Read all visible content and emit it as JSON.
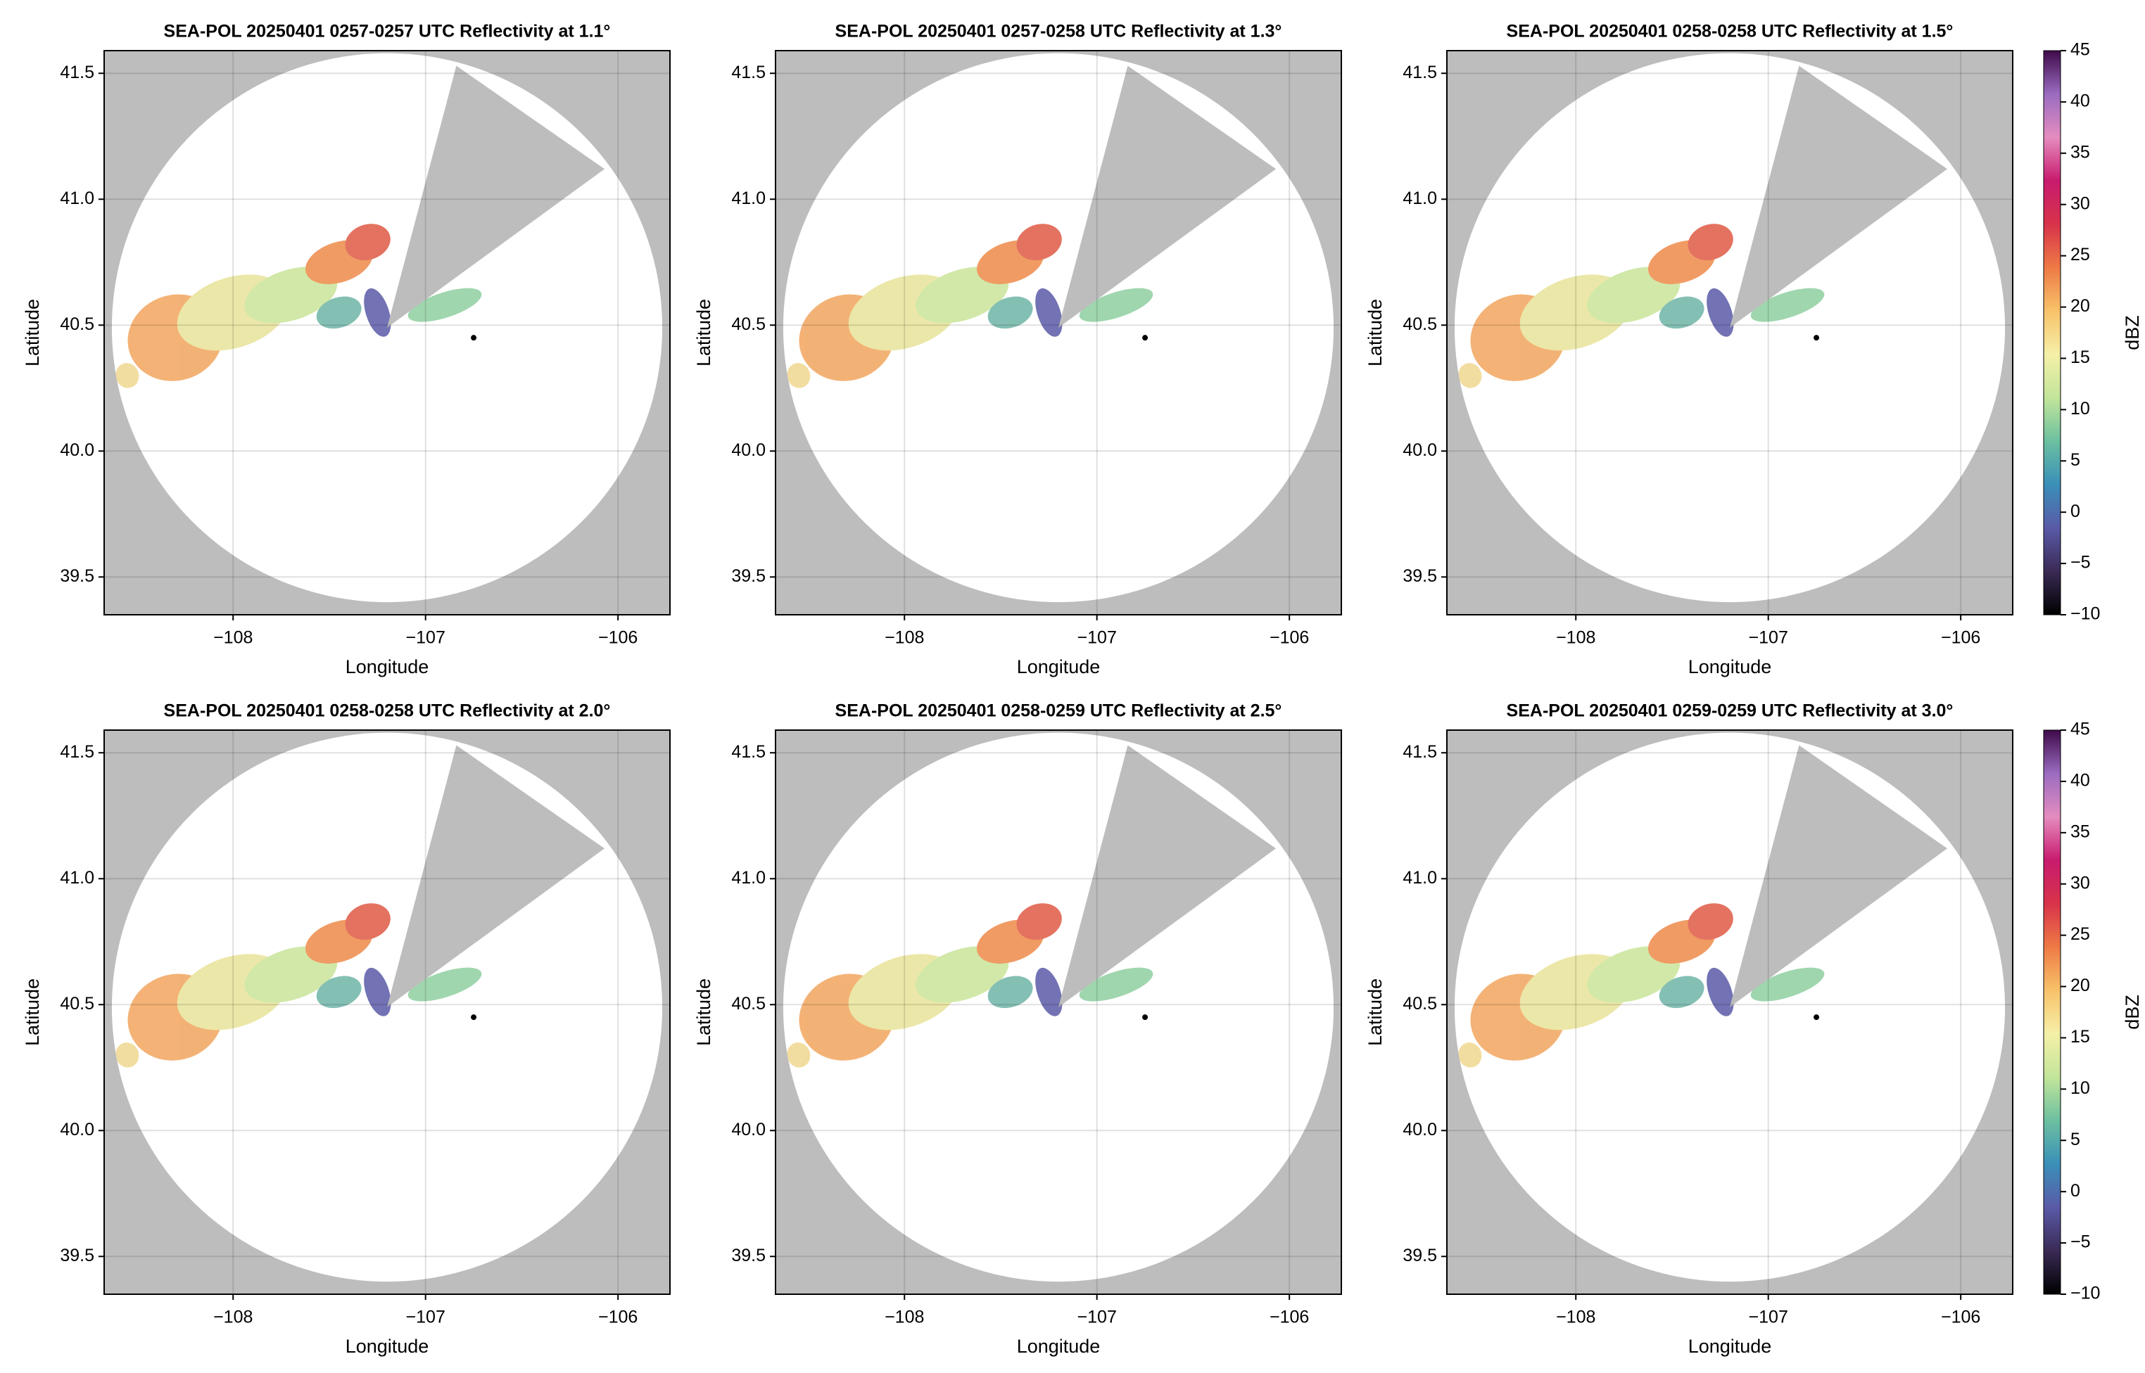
{
  "chart_data": [
    {
      "type": "radar",
      "title": "SEA-POL 20250401 0257-0257 UTC Reflectivity at 1.1°",
      "xlabel": "Longitude",
      "ylabel": "Latitude",
      "xlim": [
        -108.67,
        -105.73
      ],
      "ylim": [
        39.35,
        41.59
      ],
      "xticks": [
        {
          "value": -108,
          "label": "−108"
        },
        {
          "value": -107,
          "label": "−107"
        },
        {
          "value": -106,
          "label": "−106"
        }
      ],
      "yticks": [
        39.5,
        {
          "value": 40,
          "label": "40.0"
        },
        40.5,
        {
          "value": 41,
          "label": "41.0"
        },
        41.5
      ],
      "grid": true
    },
    {
      "type": "radar",
      "title": "SEA-POL 20250401 0257-0258 UTC Reflectivity at 1.3°",
      "xlabel": "Longitude",
      "ylabel": "Latitude",
      "xlim": [
        -108.67,
        -105.73
      ],
      "ylim": [
        39.35,
        41.59
      ],
      "xticks": [
        {
          "value": -108,
          "label": "−108"
        },
        {
          "value": -107,
          "label": "−107"
        },
        {
          "value": -106,
          "label": "−106"
        }
      ],
      "yticks": [
        39.5,
        {
          "value": 40,
          "label": "40.0"
        },
        40.5,
        {
          "value": 41,
          "label": "41.0"
        },
        41.5
      ],
      "grid": true
    },
    {
      "type": "radar",
      "title": "SEA-POL 20250401 0258-0258 UTC Reflectivity at 1.5°",
      "xlabel": "Longitude",
      "ylabel": "Latitude",
      "xlim": [
        -108.67,
        -105.73
      ],
      "ylim": [
        39.35,
        41.59
      ],
      "xticks": [
        {
          "value": -108,
          "label": "−108"
        },
        {
          "value": -107,
          "label": "−107"
        },
        {
          "value": -106,
          "label": "−106"
        }
      ],
      "yticks": [
        39.5,
        {
          "value": 40,
          "label": "40.0"
        },
        40.5,
        {
          "value": 41,
          "label": "41.0"
        },
        41.5
      ],
      "grid": true,
      "colorbar": {
        "label": "dBZ",
        "lim": [
          -10,
          45
        ],
        "ticks": [
          {
            "value": -10,
            "label": "−10"
          },
          {
            "value": -5,
            "label": "−5"
          },
          0,
          5,
          10,
          15,
          20,
          25,
          30,
          35,
          40,
          45
        ],
        "colors": [
          "#000000",
          "#3a2a55",
          "#5a5aa8",
          "#3a8fb8",
          "#6cc0a0",
          "#c2e59a",
          "#f5f0a8",
          "#f8c26a",
          "#ee7a45",
          "#d8334a",
          "#c81b6e",
          "#e58cc0",
          "#9a6cc0",
          "#3f0a4a"
        ]
      }
    },
    {
      "type": "radar",
      "title": "SEA-POL 20250401 0258-0258 UTC Reflectivity at 2.0°",
      "xlabel": "Longitude",
      "ylabel": "Latitude",
      "xlim": [
        -108.67,
        -105.73
      ],
      "ylim": [
        39.35,
        41.59
      ],
      "xticks": [
        {
          "value": -108,
          "label": "−108"
        },
        {
          "value": -107,
          "label": "−107"
        },
        {
          "value": -106,
          "label": "−106"
        }
      ],
      "yticks": [
        39.5,
        {
          "value": 40,
          "label": "40.0"
        },
        40.5,
        {
          "value": 41,
          "label": "41.0"
        },
        41.5
      ],
      "grid": true
    },
    {
      "type": "radar",
      "title": "SEA-POL 20250401 0258-0259 UTC Reflectivity at 2.5°",
      "xlabel": "Longitude",
      "ylabel": "Latitude",
      "xlim": [
        -108.67,
        -105.73
      ],
      "ylim": [
        39.35,
        41.59
      ],
      "xticks": [
        {
          "value": -108,
          "label": "−108"
        },
        {
          "value": -107,
          "label": "−107"
        },
        {
          "value": -106,
          "label": "−106"
        }
      ],
      "yticks": [
        39.5,
        {
          "value": 40,
          "label": "40.0"
        },
        40.5,
        {
          "value": 41,
          "label": "41.0"
        },
        41.5
      ],
      "grid": true
    },
    {
      "type": "radar",
      "title": "SEA-POL 20250401 0259-0259 UTC Reflectivity at 3.0°",
      "xlabel": "Longitude",
      "ylabel": "Latitude",
      "xlim": [
        -108.67,
        -105.73
      ],
      "ylim": [
        39.35,
        41.59
      ],
      "xticks": [
        {
          "value": -108,
          "label": "−108"
        },
        {
          "value": -107,
          "label": "−107"
        },
        {
          "value": -106,
          "label": "−106"
        }
      ],
      "yticks": [
        39.5,
        {
          "value": 40,
          "label": "40.0"
        },
        40.5,
        {
          "value": 41,
          "label": "41.0"
        },
        41.5
      ],
      "grid": true,
      "colorbar": {
        "label": "dBZ",
        "lim": [
          -10,
          45
        ],
        "ticks": [
          {
            "value": -10,
            "label": "−10"
          },
          {
            "value": -5,
            "label": "−5"
          },
          0,
          5,
          10,
          15,
          20,
          25,
          30,
          35,
          40,
          45
        ],
        "colors": [
          "#000000",
          "#3a2a55",
          "#5a5aa8",
          "#3a8fb8",
          "#6cc0a0",
          "#c2e59a",
          "#f5f0a8",
          "#f8c26a",
          "#ee7a45",
          "#d8334a",
          "#c81b6e",
          "#e58cc0",
          "#9a6cc0",
          "#3f0a4a"
        ]
      }
    }
  ]
}
